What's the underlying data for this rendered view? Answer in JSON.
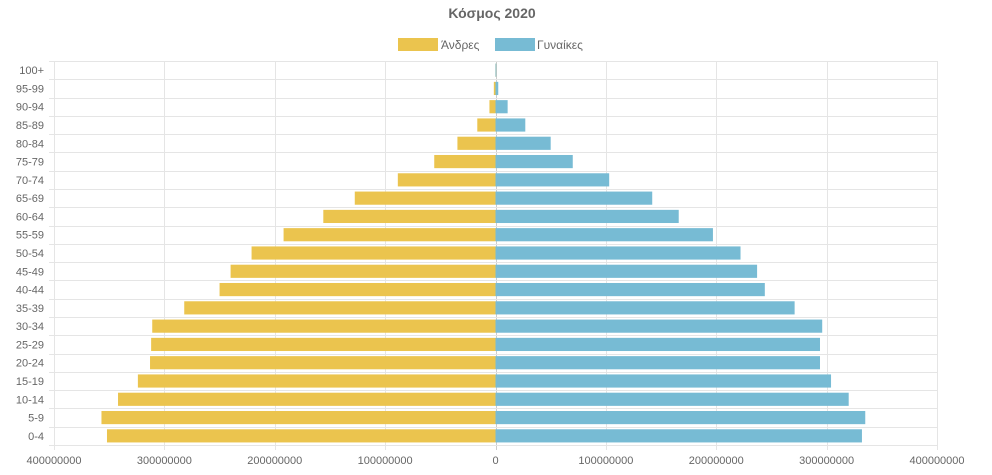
{
  "chart_data": {
    "type": "bar",
    "orientation": "horizontal",
    "title": "Κόσμος 2020",
    "legend_position": "top-center",
    "grid": true,
    "categories": [
      "100+",
      "95-99",
      "90-94",
      "85-89",
      "80-84",
      "75-79",
      "70-74",
      "65-69",
      "60-64",
      "55-59",
      "50-54",
      "45-49",
      "40-44",
      "35-39",
      "30-34",
      "25-29",
      "20-24",
      "15-19",
      "10-14",
      "5-9",
      "0-4"
    ],
    "series": [
      {
        "name": "Άνδρες",
        "color": "#ebc44e",
        "values": [
          -100000,
          -1500000,
          -5500000,
          -16500000,
          -34500000,
          -55500000,
          -88500000,
          -127500000,
          -156000000,
          -192000000,
          -221000000,
          -240000000,
          -250000000,
          -282000000,
          -311000000,
          -312000000,
          -313000000,
          -324000000,
          -342000000,
          -357000000,
          -352000000
        ]
      },
      {
        "name": "Γυναίκες",
        "color": "#77bbd4",
        "values": [
          500000,
          2500000,
          11000000,
          27000000,
          50000000,
          70000000,
          103000000,
          142000000,
          166000000,
          197000000,
          222000000,
          237000000,
          244000000,
          271000000,
          296000000,
          294000000,
          294000000,
          304000000,
          320000000,
          335000000,
          332000000
        ]
      }
    ],
    "xlim": [
      -400000000,
      400000000
    ],
    "xticks": [
      {
        "value": -400000000,
        "label": "400000000"
      },
      {
        "value": -300000000,
        "label": "300000000"
      },
      {
        "value": -200000000,
        "label": "200000000"
      },
      {
        "value": -100000000,
        "label": "100000000"
      },
      {
        "value": 0,
        "label": "0"
      },
      {
        "value": 100000000,
        "label": "100000000"
      },
      {
        "value": 200000000,
        "label": "200000000"
      },
      {
        "value": 300000000,
        "label": "300000000"
      },
      {
        "value": 400000000,
        "label": "400000000"
      }
    ]
  }
}
